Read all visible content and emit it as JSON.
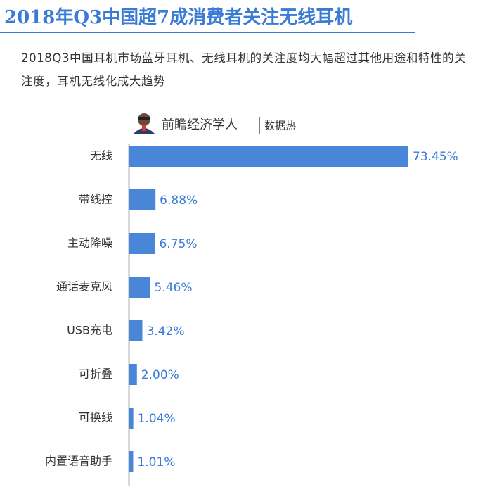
{
  "chart_data": {
    "type": "bar",
    "orientation": "horizontal",
    "title": "2018年Q3中国超7成消费者关注无线耳机",
    "subtitle": "2018Q3中国耳机市场蓝牙耳机、无线耳机的关注度均大幅超过其他用途和特性的关注度，耳机无线化成大趋势",
    "source": "前瞻经济学人",
    "source_tag": "数据热",
    "categories": [
      "无线",
      "带线控",
      "主动降噪",
      "通话麦克风",
      "USB充电",
      "可折叠",
      "可换线",
      "内置语音助手"
    ],
    "values": [
      73.45,
      6.88,
      6.75,
      5.46,
      3.42,
      2.0,
      1.04,
      1.01
    ],
    "value_labels": [
      "73.45%",
      "6.88%",
      "6.75%",
      "5.46%",
      "3.42%",
      "2.00%",
      "1.04%",
      "1.01%"
    ],
    "color": "#4a86d8"
  }
}
